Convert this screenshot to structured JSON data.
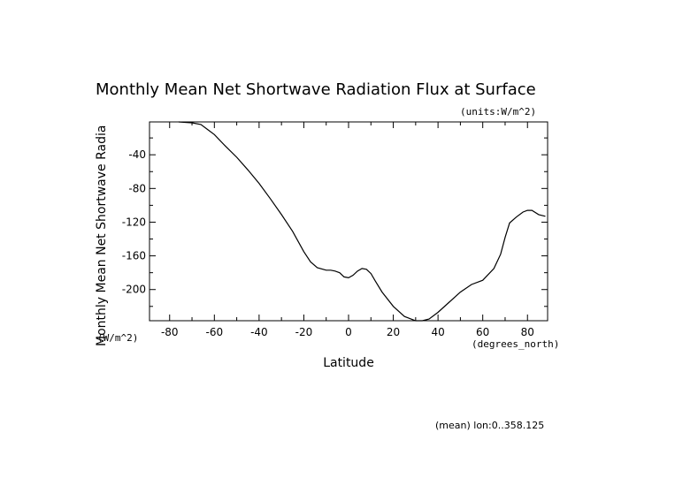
{
  "chart_data": {
    "type": "line",
    "title": "Monthly Mean Net Shortwave Radiation Flux at Surface",
    "units_label": "(units:W/m^2)",
    "xlabel": "Latitude",
    "x_units_label": "(degrees_north)",
    "ylabel": "Monthly Mean Net Shortwave Radia",
    "y_units_label": "(W/m^2)",
    "footnote": "(mean) lon:0..358.125",
    "xlim": [
      -89,
      89
    ],
    "ylim": [
      -237,
      -1
    ],
    "x_ticks": [
      -80,
      -60,
      -40,
      -20,
      0,
      20,
      40,
      60,
      80
    ],
    "y_ticks": [
      -40,
      -80,
      -120,
      -160,
      -200
    ],
    "grid": false,
    "series": [
      {
        "x": [
          -76,
          -70,
          -66,
          -63,
          -60,
          -55,
          -50,
          -45,
          -40,
          -35,
          -30,
          -25,
          -20,
          -17,
          -14,
          -10,
          -8,
          -6,
          -4,
          -2,
          0,
          2,
          4,
          6,
          8,
          10,
          12,
          15,
          20,
          25,
          30,
          33,
          36,
          40,
          45,
          50,
          55,
          60,
          65,
          68,
          70,
          72,
          75,
          78,
          80,
          82,
          85,
          88
        ],
        "y": [
          -1,
          -2,
          -4,
          -10,
          -16,
          -30,
          -43,
          -58,
          -74,
          -92,
          -111,
          -131,
          -155,
          -167,
          -174,
          -177,
          -177,
          -178,
          -180,
          -185,
          -186,
          -183,
          -178,
          -175,
          -176,
          -181,
          -190,
          -203,
          -220,
          -232,
          -237,
          -237,
          -235,
          -227,
          -215,
          -203,
          -194,
          -189,
          -175,
          -158,
          -138,
          -121,
          -114,
          -108,
          -106,
          -106,
          -111,
          -113
        ]
      }
    ]
  }
}
